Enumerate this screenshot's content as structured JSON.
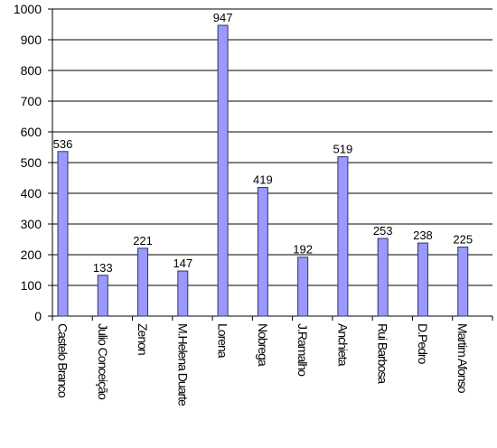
{
  "chart_data": {
    "type": "bar",
    "categories": [
      "Castelo Branco",
      "Julio Conceição",
      "Zenon",
      "M.Helena Duarte",
      "Lorena",
      "Nobrega",
      "J.Ramalho",
      "Anchieta",
      "Rui Barbosa",
      "D.Pedro",
      "Martim Afonso"
    ],
    "values": [
      536,
      133,
      221,
      147,
      947,
      419,
      192,
      519,
      253,
      238,
      225
    ],
    "color": "#9999ff",
    "ylim": [
      0,
      1000
    ],
    "yticks": [
      0,
      100,
      200,
      300,
      400,
      500,
      600,
      700,
      800,
      900,
      1000
    ],
    "grid": true
  }
}
